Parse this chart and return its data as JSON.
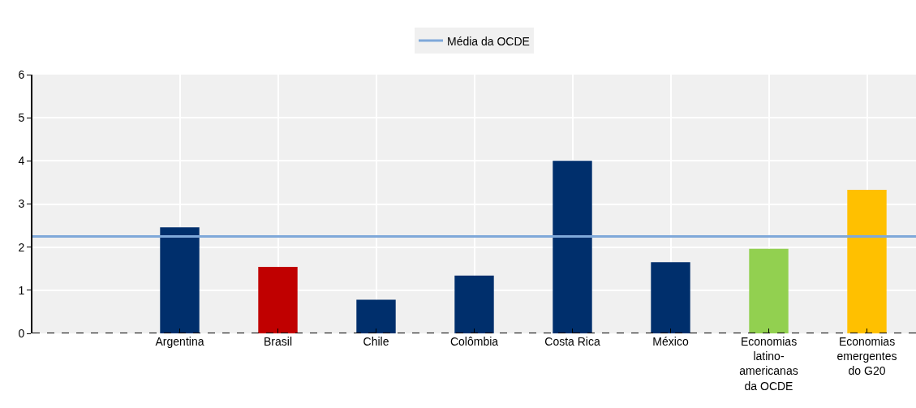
{
  "chart_data": {
    "type": "bar",
    "categories": [
      null,
      "Argentina",
      "Brasil",
      "Chile",
      "Colômbia",
      "Costa Rica",
      "México",
      "Economias latino-americanas da OCDE",
      "Economias emergentes do G20"
    ],
    "values": [
      null,
      2.46,
      1.54,
      0.78,
      1.34,
      4.0,
      1.65,
      1.96,
      3.33
    ],
    "colors": [
      "#002f6c",
      "#002f6c",
      "#c00000",
      "#002f6c",
      "#002f6c",
      "#002f6c",
      "#002f6c",
      "#92d050",
      "#ffc000"
    ],
    "ylim": [
      0,
      6
    ],
    "yticks": [
      0,
      1,
      2,
      3,
      4,
      5,
      6
    ],
    "ref_lines": [
      {
        "axis": "y",
        "value": 2.25,
        "label": "Média da OCDE",
        "color": "#7fa8d9"
      }
    ],
    "grid": true,
    "legend": "top"
  }
}
